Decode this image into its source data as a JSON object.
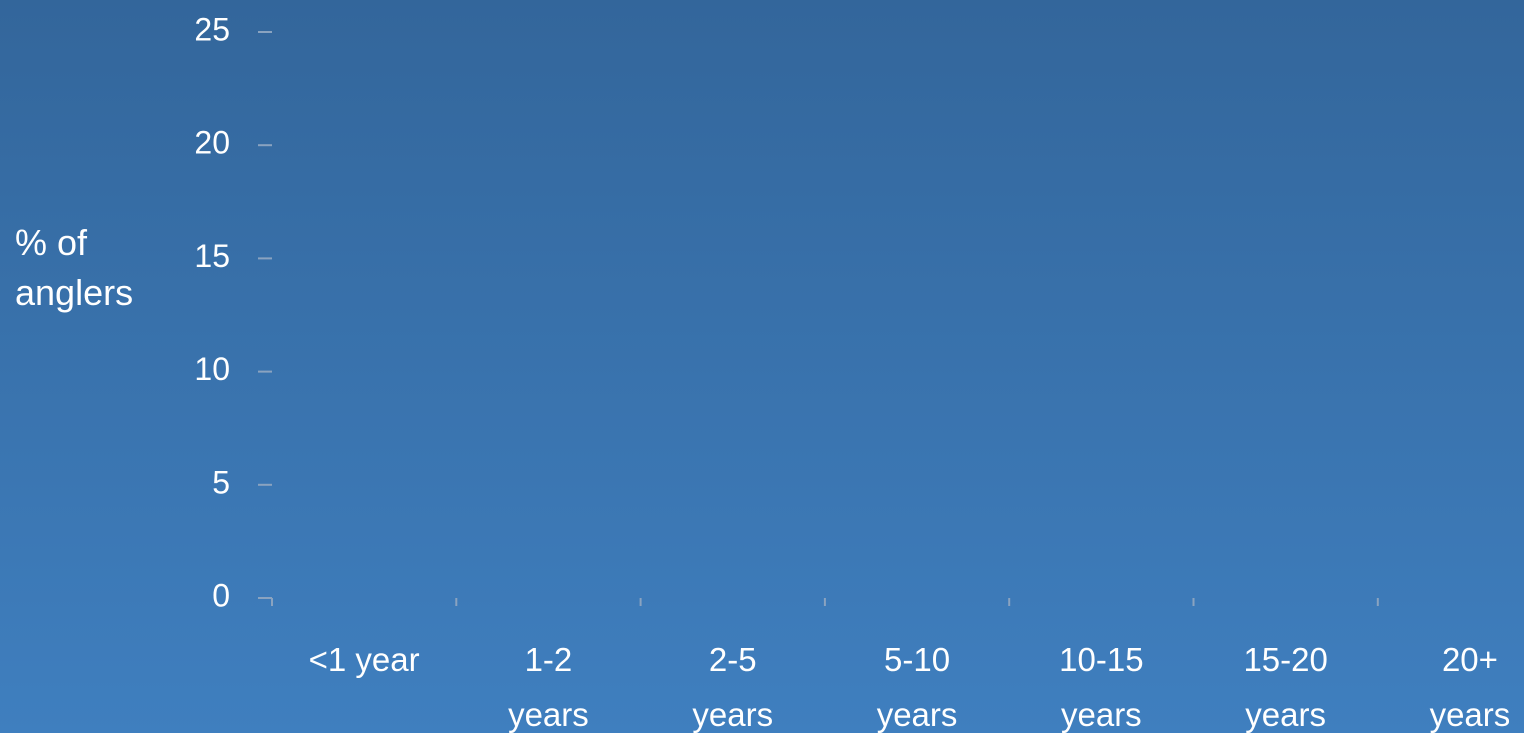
{
  "chart_data": {
    "type": "bar",
    "y_label": "% of anglers",
    "categories": [
      "<1 year",
      "1-2 years",
      "2-5 years",
      "5-10 years",
      "10-15 years",
      "15-20 years",
      "20+ years"
    ],
    "ylim": [
      0,
      25
    ],
    "yticks": [
      0,
      5,
      10,
      15,
      20,
      25
    ]
  }
}
